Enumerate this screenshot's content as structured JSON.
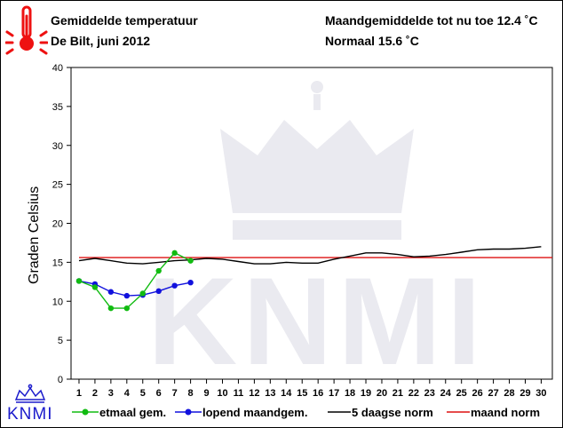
{
  "header": {
    "title": "Gemiddelde temperatuur",
    "subtitle": "De Bilt, juni 2012",
    "month_avg": "Maandgemiddelde tot nu toe 12.4 ˚C",
    "normal": "Normaal 15.6 ˚C"
  },
  "logo": {
    "text": "KNMI"
  },
  "colors": {
    "thermometer": "#ee1111",
    "etmaal": "#11bb11",
    "lopend": "#1111dd",
    "norm5": "#000000",
    "maandnorm": "#dd1111",
    "logo": "#1a1acc"
  },
  "icons": {
    "thermometer": "thermometer-icon",
    "crown": "crown-icon"
  },
  "chart_data": {
    "type": "line",
    "ylabel": "Graden Celsius",
    "xlabel": "",
    "ylim": [
      0,
      40
    ],
    "yticks": [
      0,
      5,
      10,
      15,
      20,
      25,
      30,
      35,
      40
    ],
    "xlim": [
      0.5,
      30.7
    ],
    "xticks": [
      1,
      2,
      3,
      4,
      5,
      6,
      7,
      8,
      9,
      10,
      11,
      12,
      13,
      14,
      15,
      16,
      17,
      18,
      19,
      20,
      21,
      22,
      23,
      24,
      25,
      26,
      27,
      28,
      29,
      30
    ],
    "grid": false,
    "legend_position": "bottom",
    "series": [
      {
        "name": "etmaal gem.",
        "key": "etmaal",
        "marker": true,
        "x": [
          1,
          2,
          3,
          4,
          5,
          6,
          7,
          8
        ],
        "y": [
          12.6,
          11.8,
          9.1,
          9.1,
          11.0,
          13.9,
          16.2,
          15.2
        ]
      },
      {
        "name": "lopend maandgem.",
        "key": "lopend",
        "marker": true,
        "x": [
          1,
          2,
          3,
          4,
          5,
          6,
          7,
          8
        ],
        "y": [
          12.6,
          12.2,
          11.2,
          10.7,
          10.8,
          11.3,
          12.0,
          12.4
        ]
      },
      {
        "name": "5 daagse norm",
        "key": "norm5",
        "marker": false,
        "x": [
          1,
          2,
          3,
          4,
          5,
          6,
          7,
          8,
          9,
          10,
          11,
          12,
          13,
          14,
          15,
          16,
          17,
          18,
          19,
          20,
          21,
          22,
          23,
          24,
          25,
          26,
          27,
          28,
          29,
          30
        ],
        "y": [
          15.2,
          15.5,
          15.2,
          14.9,
          14.8,
          15.0,
          15.2,
          15.3,
          15.5,
          15.4,
          15.1,
          14.8,
          14.8,
          15.0,
          14.9,
          14.9,
          15.4,
          15.8,
          16.2,
          16.2,
          16.0,
          15.7,
          15.8,
          16.0,
          16.3,
          16.6,
          16.7,
          16.7,
          16.8,
          17.0
        ]
      },
      {
        "name": "maand norm",
        "key": "maandnorm",
        "marker": false,
        "x": [
          1,
          30.7
        ],
        "y": [
          15.6,
          15.6
        ]
      }
    ]
  }
}
